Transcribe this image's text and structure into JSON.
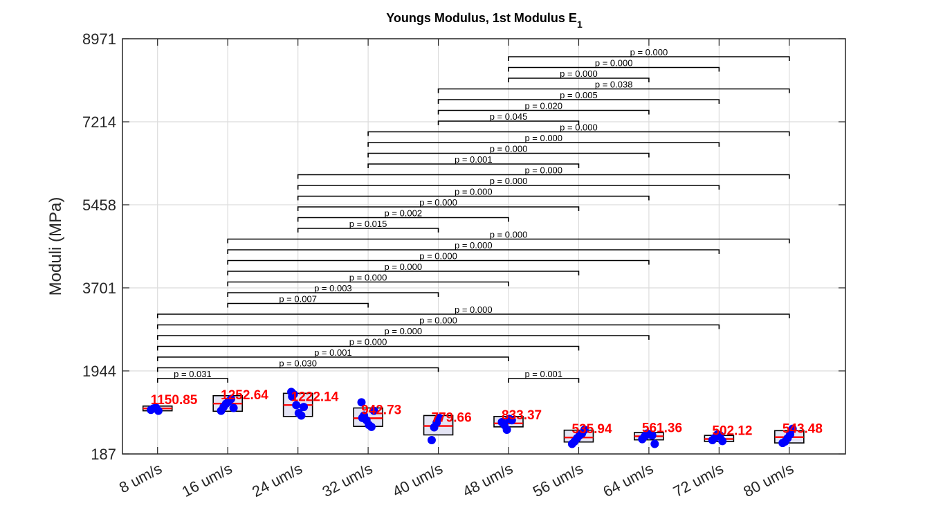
{
  "chart_data": {
    "type": "box",
    "title": "Youngs Modulus, 1st Modulus E",
    "title_subscript": "1",
    "ylabel": "Moduli (MPa)",
    "xlabel": "",
    "ylim": [
      187,
      8971
    ],
    "yticks": [
      "187",
      "1944",
      "3701",
      "5458",
      "7214",
      "8971"
    ],
    "grid": true,
    "categories": [
      "8 um/s",
      "16 um/s",
      "24 um/s",
      "32 um/s",
      "40 um/s",
      "48 um/s",
      "56 um/s",
      "64 um/s",
      "72 um/s",
      "80 um/s"
    ],
    "medians": [
      1150.85,
      1252.64,
      1222.14,
      942.73,
      779.66,
      833.37,
      535.94,
      561.36,
      502.12,
      543.48
    ],
    "median_labels": [
      "1150.85",
      "1252.64",
      "1222.14",
      "942.73",
      "779.66",
      "833.37",
      "535.94",
      "561.36",
      "502.12",
      "543.48"
    ],
    "boxes": [
      {
        "q1": 1100,
        "q3": 1200
      },
      {
        "q1": 1090,
        "q3": 1420
      },
      {
        "q1": 980,
        "q3": 1470
      },
      {
        "q1": 770,
        "q3": 1160
      },
      {
        "q1": 590,
        "q3": 1000
      },
      {
        "q1": 760,
        "q3": 980
      },
      {
        "q1": 440,
        "q3": 690
      },
      {
        "q1": 485,
        "q3": 640
      },
      {
        "q1": 450,
        "q3": 580
      },
      {
        "q1": 420,
        "q3": 680
      }
    ],
    "points": [
      [
        1120,
        1150,
        1170,
        1100
      ],
      [
        1100,
        1180,
        1250,
        1300,
        1350,
        1160
      ],
      [
        1500,
        1450,
        1220,
        1050,
        1000,
        1180,
        1400
      ],
      [
        1280,
        1000,
        900,
        800,
        760,
        1100,
        950
      ],
      [
        480,
        750,
        850,
        950
      ],
      [
        860,
        800,
        700,
        930,
        900
      ],
      [
        400,
        450,
        520,
        580,
        620,
        700
      ],
      [
        500,
        560,
        620,
        600,
        580,
        400
      ],
      [
        480,
        530,
        600,
        580,
        460
      ],
      [
        420,
        450,
        520,
        600,
        720
      ]
    ],
    "comparisons": [
      {
        "i": 0,
        "j": 1,
        "p": "p = 0.031"
      },
      {
        "i": 5,
        "j": 6,
        "p": "p = 0.001"
      },
      {
        "i": 0,
        "j": 4,
        "p": "p = 0.030"
      },
      {
        "i": 0,
        "j": 5,
        "p": "p = 0.001"
      },
      {
        "i": 0,
        "j": 6,
        "p": "p = 0.000"
      },
      {
        "i": 0,
        "j": 7,
        "p": "p = 0.000"
      },
      {
        "i": 0,
        "j": 8,
        "p": "p = 0.000"
      },
      {
        "i": 0,
        "j": 9,
        "p": "p = 0.000"
      },
      {
        "i": 1,
        "j": 3,
        "p": "p = 0.007"
      },
      {
        "i": 1,
        "j": 4,
        "p": "p = 0.003"
      },
      {
        "i": 1,
        "j": 5,
        "p": "p = 0.000"
      },
      {
        "i": 1,
        "j": 6,
        "p": "p = 0.000"
      },
      {
        "i": 1,
        "j": 7,
        "p": "p = 0.000"
      },
      {
        "i": 1,
        "j": 8,
        "p": "p = 0.000"
      },
      {
        "i": 1,
        "j": 9,
        "p": "p = 0.000"
      },
      {
        "i": 2,
        "j": 4,
        "p": "p = 0.015"
      },
      {
        "i": 2,
        "j": 5,
        "p": "p = 0.002"
      },
      {
        "i": 2,
        "j": 6,
        "p": "p = 0.000"
      },
      {
        "i": 2,
        "j": 7,
        "p": "p = 0.000"
      },
      {
        "i": 2,
        "j": 8,
        "p": "p = 0.000"
      },
      {
        "i": 2,
        "j": 9,
        "p": "p = 0.000"
      },
      {
        "i": 3,
        "j": 6,
        "p": "p = 0.001"
      },
      {
        "i": 3,
        "j": 7,
        "p": "p = 0.000"
      },
      {
        "i": 3,
        "j": 8,
        "p": "p = 0.000"
      },
      {
        "i": 3,
        "j": 9,
        "p": "p = 0.000"
      },
      {
        "i": 4,
        "j": 6,
        "p": "p = 0.045"
      },
      {
        "i": 4,
        "j": 7,
        "p": "p = 0.020"
      },
      {
        "i": 4,
        "j": 8,
        "p": "p = 0.005"
      },
      {
        "i": 4,
        "j": 9,
        "p": "p = 0.038"
      },
      {
        "i": 5,
        "j": 7,
        "p": "p = 0.000"
      },
      {
        "i": 5,
        "j": 8,
        "p": "p = 0.000"
      },
      {
        "i": 5,
        "j": 9,
        "p": "p = 0.000"
      }
    ],
    "colors": {
      "box_fill": "#e4e4f4",
      "box_edge": "#000000",
      "median": "#ff0000",
      "points": "#0000ff",
      "grid": "#dcdcdc"
    }
  }
}
